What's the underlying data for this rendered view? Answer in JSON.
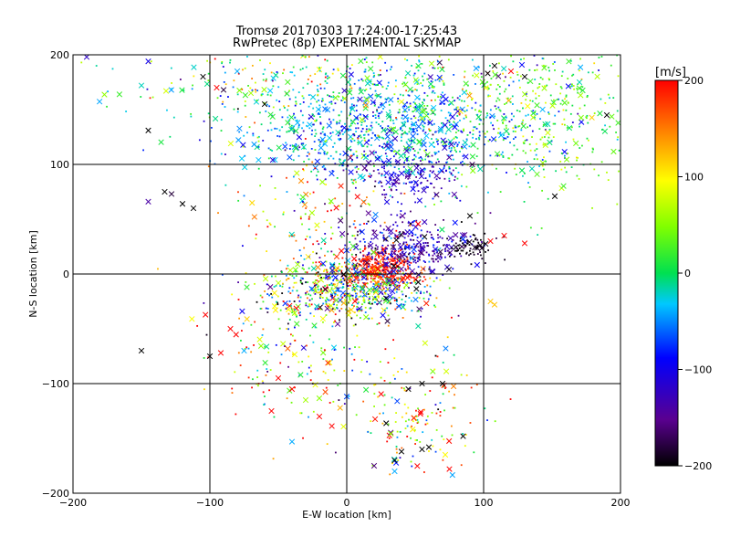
{
  "chart_data": {
    "type": "scatter",
    "title": "Tromsø 20170303 17:24:00-17:25:43",
    "subtitle": "RwPretec (8p) EXPERIMENTAL SKYMAP",
    "xlabel": "E-W location [km]",
    "ylabel": "N-S location [km]",
    "xlim": [
      -200,
      200
    ],
    "ylim": [
      -200,
      200
    ],
    "xticks": [
      -200,
      -100,
      0,
      100,
      200
    ],
    "yticks": [
      -200,
      -100,
      0,
      100,
      200
    ],
    "grid": true,
    "colorbar": {
      "label": "[m/s]",
      "range": [
        -200,
        200
      ],
      "ticks": [
        200,
        100,
        0,
        -100,
        -200
      ],
      "colormap": "black-purple-blue-cyan-green-yellow-red",
      "placement": "right"
    },
    "marker_types": [
      "dot",
      "cross"
    ],
    "clusters": [
      {
        "cx": 30,
        "cy": 130,
        "sx": 55,
        "sy": 22,
        "vmean": -40,
        "vspread": 70,
        "count": 900
      },
      {
        "cx": 20,
        "cy": 175,
        "sx": 90,
        "sy": 20,
        "vmean": 20,
        "vspread": 130,
        "count": 450
      },
      {
        "cx": 150,
        "cy": 140,
        "sx": 35,
        "sy": 40,
        "vmean": 30,
        "vspread": 60,
        "count": 300
      },
      {
        "cx": 45,
        "cy": 90,
        "sx": 18,
        "sy": 12,
        "vmean": -120,
        "vspread": 40,
        "count": 180
      },
      {
        "cx": 25,
        "cy": 5,
        "sx": 12,
        "sy": 8,
        "vmean": 190,
        "vspread": 15,
        "count": 260
      },
      {
        "cx": 0,
        "cy": -15,
        "sx": 30,
        "sy": 14,
        "vmean": 0,
        "vspread": 200,
        "count": 600
      },
      {
        "cx": 45,
        "cy": 25,
        "sx": 22,
        "sy": 14,
        "vmean": -130,
        "vspread": 60,
        "count": 350
      },
      {
        "cx": 90,
        "cy": 25,
        "sx": 10,
        "sy": 6,
        "vmean": -190,
        "vspread": 15,
        "count": 70
      },
      {
        "cx": 45,
        "cy": -130,
        "sx": 30,
        "sy": 30,
        "vmean": 80,
        "vspread": 200,
        "count": 180
      },
      {
        "cx": -40,
        "cy": -70,
        "sx": 30,
        "sy": 30,
        "vmean": 40,
        "vspread": 200,
        "count": 160
      },
      {
        "cx": -20,
        "cy": 50,
        "sx": 35,
        "sy": 40,
        "vmean": 100,
        "vspread": 200,
        "count": 180
      }
    ],
    "points": [
      {
        "x": -190,
        "y": 198,
        "v": -120,
        "m": "cross"
      },
      {
        "x": -145,
        "y": 131,
        "v": -200,
        "m": "cross"
      },
      {
        "x": -145,
        "y": 66,
        "v": -140,
        "m": "cross"
      },
      {
        "x": -133,
        "y": 75,
        "v": -200,
        "m": "cross"
      },
      {
        "x": -128,
        "y": 73,
        "v": -180,
        "m": "cross"
      },
      {
        "x": -120,
        "y": 64,
        "v": -200,
        "m": "cross"
      },
      {
        "x": -112,
        "y": 60,
        "v": -200,
        "m": "cross"
      },
      {
        "x": -150,
        "y": -70,
        "v": -200,
        "m": "cross"
      },
      {
        "x": -150,
        "y": 172,
        "v": -20,
        "m": "cross"
      },
      {
        "x": -132,
        "y": 167,
        "v": 80,
        "m": "cross"
      },
      {
        "x": -145,
        "y": 194,
        "v": -100,
        "m": "cross"
      },
      {
        "x": -105,
        "y": 180,
        "v": -200,
        "m": "cross"
      },
      {
        "x": -95,
        "y": 170,
        "v": 200,
        "m": "cross"
      },
      {
        "x": -90,
        "y": 168,
        "v": -180,
        "m": "cross"
      },
      {
        "x": -80,
        "y": 185,
        "v": -40,
        "m": "cross"
      },
      {
        "x": -70,
        "y": 165,
        "v": 60,
        "m": "cross"
      },
      {
        "x": -60,
        "y": 155,
        "v": -200,
        "m": "cross"
      },
      {
        "x": -92,
        "y": -72,
        "v": 200,
        "m": "cross"
      },
      {
        "x": -100,
        "y": -75,
        "v": -200,
        "m": "cross"
      },
      {
        "x": -85,
        "y": -50,
        "v": 200,
        "m": "cross"
      },
      {
        "x": -75,
        "y": -70,
        "v": -40,
        "m": "cross"
      },
      {
        "x": -50,
        "y": -95,
        "v": 200,
        "m": "cross"
      },
      {
        "x": -40,
        "y": -105,
        "v": 200,
        "m": "cross"
      },
      {
        "x": -30,
        "y": -115,
        "v": 60,
        "m": "cross"
      },
      {
        "x": -40,
        "y": -153,
        "v": -40,
        "m": "cross"
      },
      {
        "x": -55,
        "y": -125,
        "v": 200,
        "m": "cross"
      },
      {
        "x": -20,
        "y": -130,
        "v": 200,
        "m": "cross"
      },
      {
        "x": 20,
        "y": -175,
        "v": -160,
        "m": "cross"
      },
      {
        "x": 35,
        "y": -170,
        "v": -200,
        "m": "cross"
      },
      {
        "x": 40,
        "y": -162,
        "v": -200,
        "m": "cross"
      },
      {
        "x": 55,
        "y": -160,
        "v": -200,
        "m": "cross"
      },
      {
        "x": 60,
        "y": -158,
        "v": -200,
        "m": "cross"
      },
      {
        "x": 75,
        "y": -178,
        "v": 200,
        "m": "cross"
      },
      {
        "x": 85,
        "y": -148,
        "v": -200,
        "m": "cross"
      },
      {
        "x": 35,
        "y": -180,
        "v": -40,
        "m": "cross"
      },
      {
        "x": 45,
        "y": -105,
        "v": -200,
        "m": "cross"
      },
      {
        "x": 55,
        "y": -100,
        "v": -200,
        "m": "cross"
      },
      {
        "x": 70,
        "y": -100,
        "v": -200,
        "m": "cross"
      },
      {
        "x": 103,
        "y": 183,
        "v": -200,
        "m": "cross"
      },
      {
        "x": 108,
        "y": 190,
        "v": -200,
        "m": "cross"
      },
      {
        "x": 120,
        "y": 185,
        "v": 200,
        "m": "cross"
      },
      {
        "x": 130,
        "y": 180,
        "v": -200,
        "m": "cross"
      },
      {
        "x": 152,
        "y": 71,
        "v": -200,
        "m": "cross"
      },
      {
        "x": 170,
        "y": 175,
        "v": -20,
        "m": "cross"
      },
      {
        "x": 190,
        "y": 145,
        "v": -200,
        "m": "cross"
      },
      {
        "x": 105,
        "y": 30,
        "v": 200,
        "m": "cross"
      },
      {
        "x": 115,
        "y": 35,
        "v": 200,
        "m": "cross"
      },
      {
        "x": 130,
        "y": 28,
        "v": 200,
        "m": "cross"
      },
      {
        "x": 105,
        "y": -25,
        "v": 120,
        "m": "cross"
      },
      {
        "x": 108,
        "y": -28,
        "v": 120,
        "m": "cross"
      },
      {
        "x": 90,
        "y": 53,
        "v": -200,
        "m": "cross"
      }
    ]
  }
}
